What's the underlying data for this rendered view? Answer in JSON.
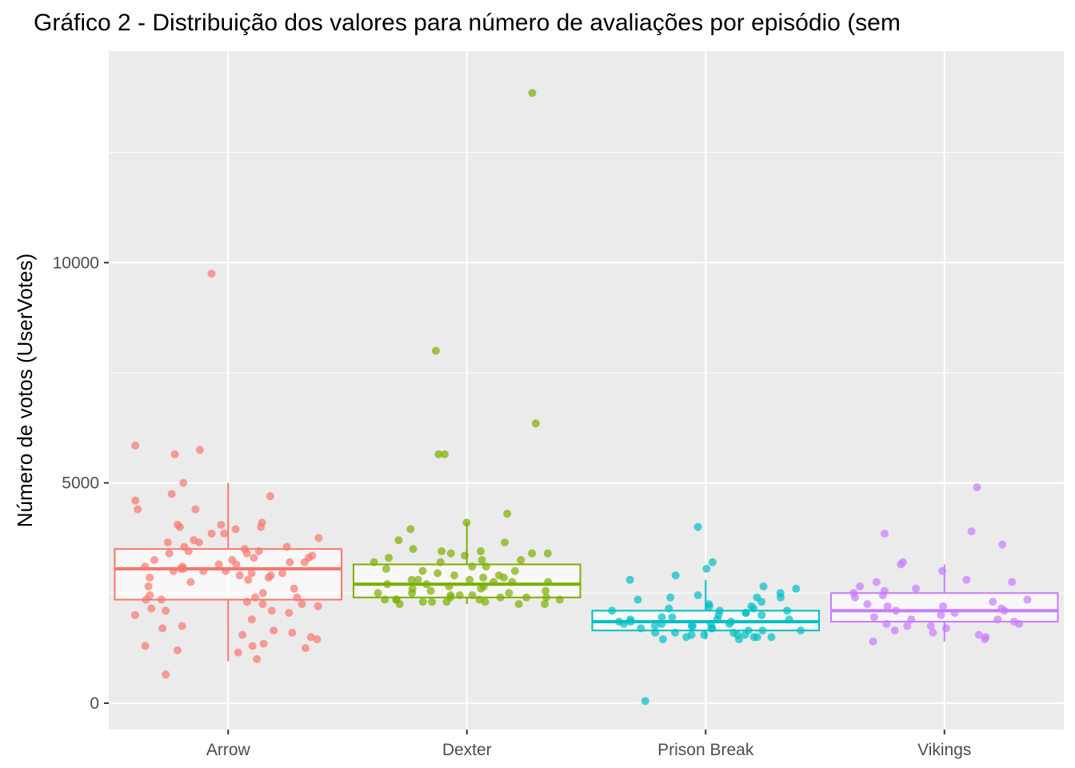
{
  "chart_data": {
    "type": "boxplot",
    "title": "Gráfico 2 - Distribuição dos valores para número de avaliações por episódio (sem",
    "xlabel": "",
    "ylabel": "Número de votos (UserVotes)",
    "ylim": [
      -600,
      14800
    ],
    "yticks": [
      0,
      5000,
      10000
    ],
    "grid": true,
    "legend": "none",
    "categories": [
      "Arrow",
      "Dexter",
      "Prison Break",
      "Vikings"
    ],
    "series": [
      {
        "category": "Arrow",
        "color": "#F8766D",
        "box": {
          "whisker_low": 950,
          "q1": 2350,
          "median": 3050,
          "q3": 3500,
          "whisker_high": 5000
        },
        "points": [
          9750,
          5850,
          5750,
          5650,
          5000,
          4750,
          4700,
          4600,
          4400,
          4400,
          4100,
          4050,
          4050,
          4000,
          4000,
          3950,
          3850,
          3850,
          3750,
          3700,
          3650,
          3650,
          3550,
          3550,
          3500,
          3450,
          3450,
          3400,
          3400,
          3350,
          3300,
          3300,
          3250,
          3250,
          3200,
          3200,
          3150,
          3150,
          3100,
          3100,
          3050,
          3050,
          3000,
          3000,
          3000,
          2950,
          2950,
          2900,
          2900,
          2850,
          2850,
          2800,
          2750,
          2650,
          2600,
          2500,
          2450,
          2400,
          2400,
          2350,
          2350,
          2300,
          2250,
          2250,
          2200,
          2150,
          2100,
          2100,
          2050,
          2000,
          1900,
          1750,
          1700,
          1650,
          1600,
          1550,
          1500,
          1450,
          1350,
          1300,
          1300,
          1250,
          1200,
          1150,
          1000,
          650
        ]
      },
      {
        "category": "Dexter",
        "color": "#7CAE00",
        "box": {
          "whisker_low": 2250,
          "q1": 2400,
          "median": 2700,
          "q3": 3150,
          "whisker_high": 4100
        },
        "points": [
          13850,
          8000,
          6350,
          5650,
          5650,
          4300,
          4100,
          3950,
          3700,
          3650,
          3500,
          3450,
          3450,
          3400,
          3400,
          3400,
          3350,
          3300,
          3250,
          3250,
          3200,
          3200,
          3100,
          3100,
          3050,
          3000,
          3000,
          2950,
          2900,
          2900,
          2850,
          2850,
          2800,
          2800,
          2800,
          2750,
          2750,
          2750,
          2700,
          2700,
          2650,
          2650,
          2600,
          2600,
          2550,
          2550,
          2500,
          2500,
          2500,
          2450,
          2450,
          2450,
          2400,
          2400,
          2400,
          2400,
          2350,
          2350,
          2350,
          2350,
          2350,
          2300,
          2300,
          2300,
          2300,
          2250,
          2250,
          2250
        ]
      },
      {
        "category": "Prison Break",
        "color": "#00BFC4",
        "box": {
          "whisker_low": 1450,
          "q1": 1650,
          "median": 1850,
          "q3": 2100,
          "whisker_high": 2800
        },
        "points": [
          4000,
          3200,
          3050,
          2900,
          2800,
          2650,
          2600,
          2500,
          2450,
          2400,
          2400,
          2400,
          2350,
          2300,
          2250,
          2200,
          2200,
          2150,
          2150,
          2100,
          2100,
          2100,
          2050,
          2050,
          2000,
          2000,
          1950,
          1950,
          1900,
          1900,
          1900,
          1850,
          1850,
          1850,
          1800,
          1800,
          1800,
          1800,
          1750,
          1750,
          1750,
          1700,
          1700,
          1700,
          1650,
          1650,
          1650,
          1600,
          1600,
          1600,
          1550,
          1550,
          1550,
          1550,
          1500,
          1500,
          1500,
          1500,
          1450,
          1450,
          50
        ]
      },
      {
        "category": "Vikings",
        "color": "#C77CFF",
        "box": {
          "whisker_low": 1400,
          "q1": 1850,
          "median": 2100,
          "q3": 2500,
          "whisker_high": 3150
        },
        "points": [
          4900,
          3900,
          3850,
          3600,
          3200,
          3150,
          3000,
          2800,
          2750,
          2750,
          2650,
          2600,
          2550,
          2500,
          2450,
          2400,
          2350,
          2300,
          2250,
          2200,
          2200,
          2150,
          2100,
          2100,
          2050,
          2000,
          1950,
          1900,
          1900,
          1850,
          1800,
          1800,
          1750,
          1750,
          1700,
          1650,
          1600,
          1550,
          1500,
          1450,
          1400
        ]
      }
    ]
  }
}
